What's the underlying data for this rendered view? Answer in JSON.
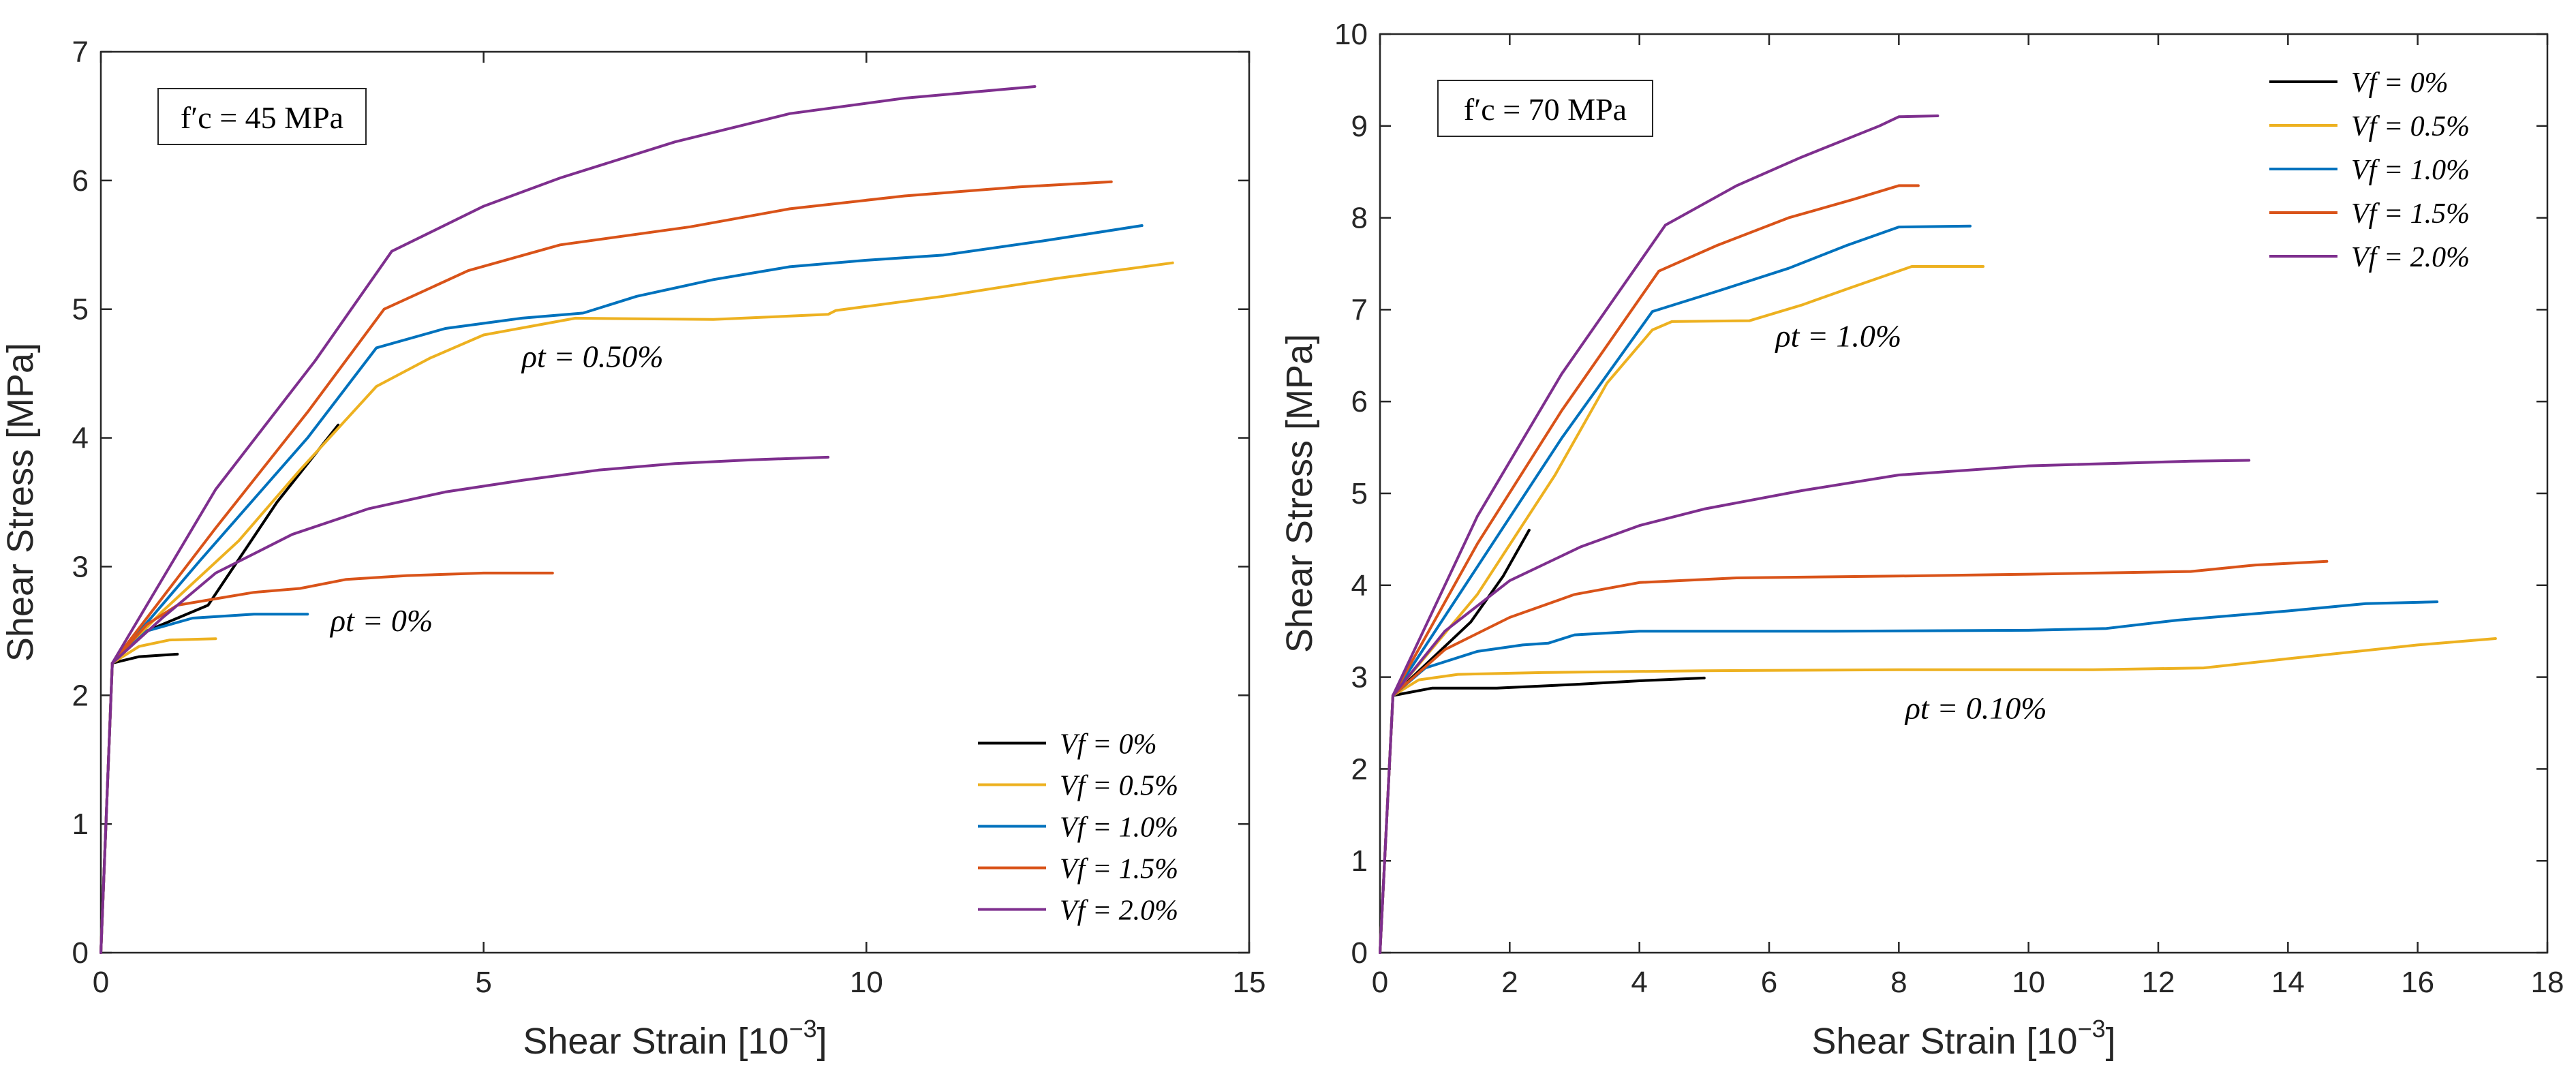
{
  "chart_data": [
    {
      "type": "line",
      "xlabel": "Shear Strain [10",
      "xlabel_sup": "−3",
      "xlabel_tail": "]",
      "ylabel": "Shear Stress [MPa]",
      "xlim": [
        0,
        15
      ],
      "ylim": [
        0,
        7
      ],
      "xticks": [
        0,
        5,
        10,
        15
      ],
      "yticks": [
        0,
        1,
        2,
        3,
        4,
        5,
        6,
        7
      ],
      "box_label": "f′c = 45 MPa",
      "legend_position": "bottom-right",
      "annotations": [
        {
          "text": "ρt = 0.50%",
          "x": 5.5,
          "y": 4.55
        },
        {
          "text": "ρt = 0%",
          "x": 3.0,
          "y": 2.5
        }
      ],
      "series": [
        {
          "name": "Vf = 0%",
          "color": "#000000",
          "groups": [
            [
              [
                0,
                0
              ],
              [
                0.15,
                2.25
              ],
              [
                0.5,
                2.3
              ],
              [
                1.0,
                2.32
              ]
            ],
            [
              [
                0.15,
                2.25
              ],
              [
                0.6,
                2.5
              ],
              [
                1.4,
                2.7
              ],
              [
                2.3,
                3.5
              ],
              [
                3.1,
                4.1
              ]
            ]
          ]
        },
        {
          "name": "Vf = 0.5%",
          "color": "#EDB120",
          "groups": [
            [
              [
                0,
                0
              ],
              [
                0.15,
                2.25
              ],
              [
                0.5,
                2.38
              ],
              [
                0.9,
                2.43
              ],
              [
                1.5,
                2.44
              ]
            ],
            [
              [
                0.15,
                2.25
              ],
              [
                0.8,
                2.65
              ],
              [
                1.8,
                3.2
              ],
              [
                2.6,
                3.75
              ],
              [
                3.6,
                4.4
              ],
              [
                4.3,
                4.62
              ],
              [
                5.0,
                4.8
              ],
              [
                6.2,
                4.93
              ],
              [
                8.0,
                4.92
              ],
              [
                9.5,
                4.96
              ],
              [
                9.6,
                4.99
              ],
              [
                11.0,
                5.1
              ],
              [
                12.5,
                5.24
              ],
              [
                14.0,
                5.36
              ]
            ]
          ]
        },
        {
          "name": "Vf = 1.0%",
          "color": "#0072BD",
          "groups": [
            [
              [
                0,
                0
              ],
              [
                0.15,
                2.25
              ],
              [
                0.6,
                2.5
              ],
              [
                1.2,
                2.6
              ],
              [
                2.0,
                2.63
              ],
              [
                2.7,
                2.63
              ]
            ],
            [
              [
                0.15,
                2.25
              ],
              [
                1.3,
                3.05
              ],
              [
                2.7,
                4.0
              ],
              [
                3.6,
                4.7
              ],
              [
                4.5,
                4.85
              ],
              [
                5.5,
                4.93
              ],
              [
                6.3,
                4.97
              ],
              [
                7.0,
                5.1
              ],
              [
                8.0,
                5.23
              ],
              [
                9.0,
                5.33
              ],
              [
                10.0,
                5.38
              ],
              [
                11.0,
                5.42
              ],
              [
                12.3,
                5.53
              ],
              [
                13.6,
                5.65
              ]
            ]
          ]
        },
        {
          "name": "Vf = 1.5%",
          "color": "#D95319",
          "groups": [
            [
              [
                0,
                0
              ],
              [
                0.15,
                2.25
              ],
              [
                0.6,
                2.55
              ],
              [
                1.0,
                2.7
              ],
              [
                1.5,
                2.75
              ],
              [
                2.0,
                2.8
              ],
              [
                2.6,
                2.83
              ],
              [
                3.2,
                2.9
              ],
              [
                4.0,
                2.93
              ],
              [
                5.0,
                2.95
              ],
              [
                5.9,
                2.95
              ]
            ],
            [
              [
                0.15,
                2.25
              ],
              [
                1.5,
                3.3
              ],
              [
                2.7,
                4.2
              ],
              [
                3.7,
                5.0
              ],
              [
                4.8,
                5.3
              ],
              [
                6.0,
                5.5
              ],
              [
                7.7,
                5.64
              ],
              [
                9.0,
                5.78
              ],
              [
                10.5,
                5.88
              ],
              [
                12.0,
                5.95
              ],
              [
                13.2,
                5.99
              ]
            ]
          ]
        },
        {
          "name": "Vf = 2.0%",
          "color": "#7E2F8E",
          "groups": [
            [
              [
                0,
                0
              ],
              [
                0.15,
                2.25
              ],
              [
                0.8,
                2.6
              ],
              [
                1.5,
                2.95
              ],
              [
                2.5,
                3.25
              ],
              [
                3.5,
                3.45
              ],
              [
                4.5,
                3.58
              ],
              [
                5.5,
                3.67
              ],
              [
                6.5,
                3.75
              ],
              [
                7.5,
                3.8
              ],
              [
                8.5,
                3.83
              ],
              [
                9.5,
                3.85
              ]
            ],
            [
              [
                0.15,
                2.25
              ],
              [
                1.5,
                3.6
              ],
              [
                2.8,
                4.6
              ],
              [
                3.8,
                5.45
              ],
              [
                5.0,
                5.8
              ],
              [
                6.0,
                6.02
              ],
              [
                7.5,
                6.3
              ],
              [
                9.0,
                6.52
              ],
              [
                10.5,
                6.64
              ],
              [
                12.2,
                6.73
              ]
            ]
          ]
        }
      ]
    },
    {
      "type": "line",
      "xlabel": "Shear Strain [10",
      "xlabel_sup": "−3",
      "xlabel_tail": "]",
      "ylabel": "Shear Stress [MPa]",
      "xlim": [
        0,
        18
      ],
      "ylim": [
        0,
        10
      ],
      "xticks": [
        0,
        2,
        4,
        6,
        8,
        10,
        12,
        14,
        16,
        18
      ],
      "yticks": [
        0,
        1,
        2,
        3,
        4,
        5,
        6,
        7,
        8,
        9,
        10
      ],
      "box_label": "f′c = 70 MPa",
      "legend_position": "top-right",
      "annotations": [
        {
          "text": "ρt = 1.0%",
          "x": 6.1,
          "y": 6.6
        },
        {
          "text": "ρt = 0.10%",
          "x": 8.1,
          "y": 2.55
        }
      ],
      "series": [
        {
          "name": "Vf = 0%",
          "color": "#000000",
          "groups": [
            [
              [
                0,
                0
              ],
              [
                0.2,
                2.8
              ],
              [
                0.8,
                2.88
              ],
              [
                1.8,
                2.88
              ],
              [
                3.0,
                2.92
              ],
              [
                4.0,
                2.96
              ],
              [
                5.0,
                2.99
              ]
            ],
            [
              [
                0.2,
                2.8
              ],
              [
                0.8,
                3.2
              ],
              [
                1.4,
                3.6
              ],
              [
                1.9,
                4.1
              ],
              [
                2.3,
                4.6
              ]
            ]
          ]
        },
        {
          "name": "Vf = 0.5%",
          "color": "#EDB120",
          "groups": [
            [
              [
                0,
                0
              ],
              [
                0.2,
                2.8
              ],
              [
                0.6,
                2.97
              ],
              [
                1.2,
                3.03
              ],
              [
                2.5,
                3.05
              ],
              [
                5.0,
                3.07
              ],
              [
                8.0,
                3.08
              ],
              [
                11.0,
                3.08
              ],
              [
                12.7,
                3.1
              ],
              [
                14.0,
                3.2
              ],
              [
                16.0,
                3.35
              ],
              [
                17.2,
                3.42
              ]
            ],
            [
              [
                0.2,
                2.8
              ],
              [
                1.5,
                3.9
              ],
              [
                2.7,
                5.2
              ],
              [
                3.5,
                6.2
              ],
              [
                4.2,
                6.78
              ],
              [
                4.5,
                6.87
              ],
              [
                5.7,
                6.88
              ],
              [
                6.5,
                7.05
              ],
              [
                7.3,
                7.25
              ],
              [
                8.2,
                7.47
              ],
              [
                9.3,
                7.47
              ]
            ]
          ]
        },
        {
          "name": "Vf = 1.0%",
          "color": "#0072BD",
          "groups": [
            [
              [
                0,
                0
              ],
              [
                0.2,
                2.8
              ],
              [
                0.7,
                3.1
              ],
              [
                1.5,
                3.28
              ],
              [
                2.2,
                3.35
              ],
              [
                2.6,
                3.37
              ],
              [
                3.0,
                3.46
              ],
              [
                4.0,
                3.5
              ],
              [
                7.0,
                3.5
              ],
              [
                10.0,
                3.51
              ],
              [
                11.2,
                3.53
              ],
              [
                12.3,
                3.62
              ],
              [
                14.0,
                3.72
              ],
              [
                15.2,
                3.8
              ],
              [
                16.3,
                3.82
              ]
            ],
            [
              [
                0.2,
                2.8
              ],
              [
                1.5,
                4.2
              ],
              [
                2.8,
                5.6
              ],
              [
                4.2,
                6.98
              ],
              [
                5.2,
                7.2
              ],
              [
                6.3,
                7.45
              ],
              [
                7.2,
                7.7
              ],
              [
                8.0,
                7.9
              ],
              [
                9.1,
                7.91
              ]
            ]
          ]
        },
        {
          "name": "Vf = 1.5%",
          "color": "#D95319",
          "groups": [
            [
              [
                0,
                0
              ],
              [
                0.2,
                2.8
              ],
              [
                1.0,
                3.3
              ],
              [
                2.0,
                3.65
              ],
              [
                3.0,
                3.9
              ],
              [
                4.0,
                4.03
              ],
              [
                5.5,
                4.08
              ],
              [
                8.0,
                4.1
              ],
              [
                10.0,
                4.12
              ],
              [
                12.5,
                4.15
              ],
              [
                13.5,
                4.22
              ],
              [
                14.6,
                4.26
              ]
            ],
            [
              [
                0.2,
                2.8
              ],
              [
                1.5,
                4.45
              ],
              [
                2.8,
                5.9
              ],
              [
                4.3,
                7.42
              ],
              [
                5.2,
                7.7
              ],
              [
                6.3,
                8.0
              ],
              [
                7.3,
                8.2
              ],
              [
                8.0,
                8.35
              ],
              [
                8.3,
                8.35
              ]
            ]
          ]
        },
        {
          "name": "Vf = 2.0%",
          "color": "#7E2F8E",
          "groups": [
            [
              [
                0,
                0
              ],
              [
                0.2,
                2.8
              ],
              [
                1.0,
                3.5
              ],
              [
                2.0,
                4.05
              ],
              [
                3.1,
                4.42
              ],
              [
                4.0,
                4.65
              ],
              [
                5.0,
                4.83
              ],
              [
                6.5,
                5.03
              ],
              [
                8.0,
                5.2
              ],
              [
                10.0,
                5.3
              ],
              [
                12.5,
                5.35
              ],
              [
                13.4,
                5.36
              ]
            ],
            [
              [
                0.2,
                2.8
              ],
              [
                1.5,
                4.75
              ],
              [
                2.8,
                6.3
              ],
              [
                4.4,
                7.92
              ],
              [
                5.5,
                8.35
              ],
              [
                6.5,
                8.66
              ],
              [
                7.7,
                9.0
              ],
              [
                8.0,
                9.1
              ],
              [
                8.6,
                9.11
              ]
            ]
          ]
        }
      ]
    }
  ]
}
